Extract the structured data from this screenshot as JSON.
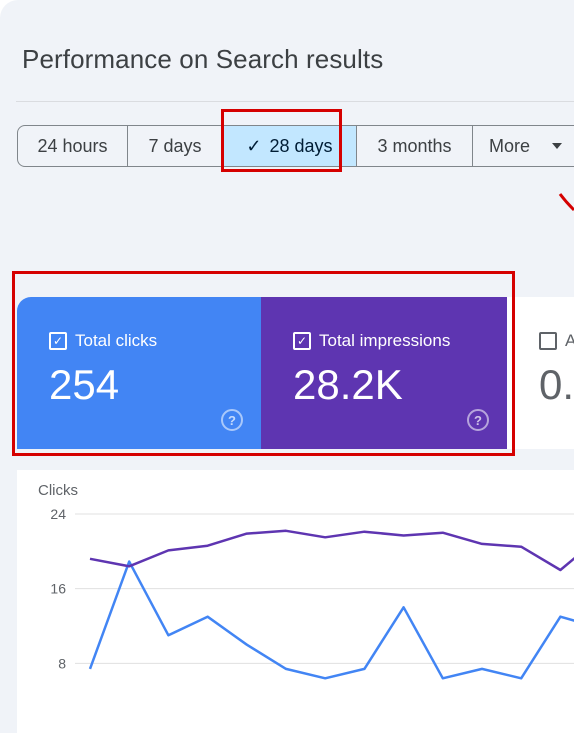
{
  "page": {
    "title": "Performance on Search results"
  },
  "date_range": {
    "options": [
      {
        "label": "24 hours",
        "selected": false
      },
      {
        "label": "7 days",
        "selected": false
      },
      {
        "label": "28 days",
        "selected": true
      },
      {
        "label": "3 months",
        "selected": false
      },
      {
        "label": "More",
        "selected": false
      }
    ]
  },
  "metrics": {
    "clicks": {
      "label": "Total clicks",
      "value": "254",
      "checked": true,
      "color": "#4285f4"
    },
    "impressions": {
      "label": "Total impressions",
      "value": "28.2K",
      "checked": true,
      "color": "#5e35b1"
    },
    "ctr": {
      "label": "A",
      "value": "0.",
      "checked": false
    }
  },
  "icons": {
    "check": "check-icon",
    "help": "help-circle-icon",
    "dropdown": "caret-down-icon"
  },
  "colors": {
    "highlight": "#d50000",
    "selected_chip": "#c2e7ff"
  },
  "chart_data": {
    "type": "line",
    "ylabel": "Clicks",
    "yticks": [
      8,
      16,
      24
    ],
    "ylim": [
      0,
      24
    ],
    "series": [
      {
        "color": "#4285f4",
        "values": [
          7.4,
          18.9,
          11.0,
          13.0,
          10.0,
          7.4,
          6.4,
          7.4,
          14.0,
          6.4,
          7.4,
          6.4,
          13.0,
          11.8
        ]
      },
      {
        "color": "#5e35b1",
        "values": [
          19.2,
          18.4,
          20.1,
          20.6,
          21.9,
          22.2,
          21.5,
          22.1,
          21.7,
          22.0,
          20.8,
          20.5,
          18.0,
          21.5
        ]
      }
    ]
  }
}
